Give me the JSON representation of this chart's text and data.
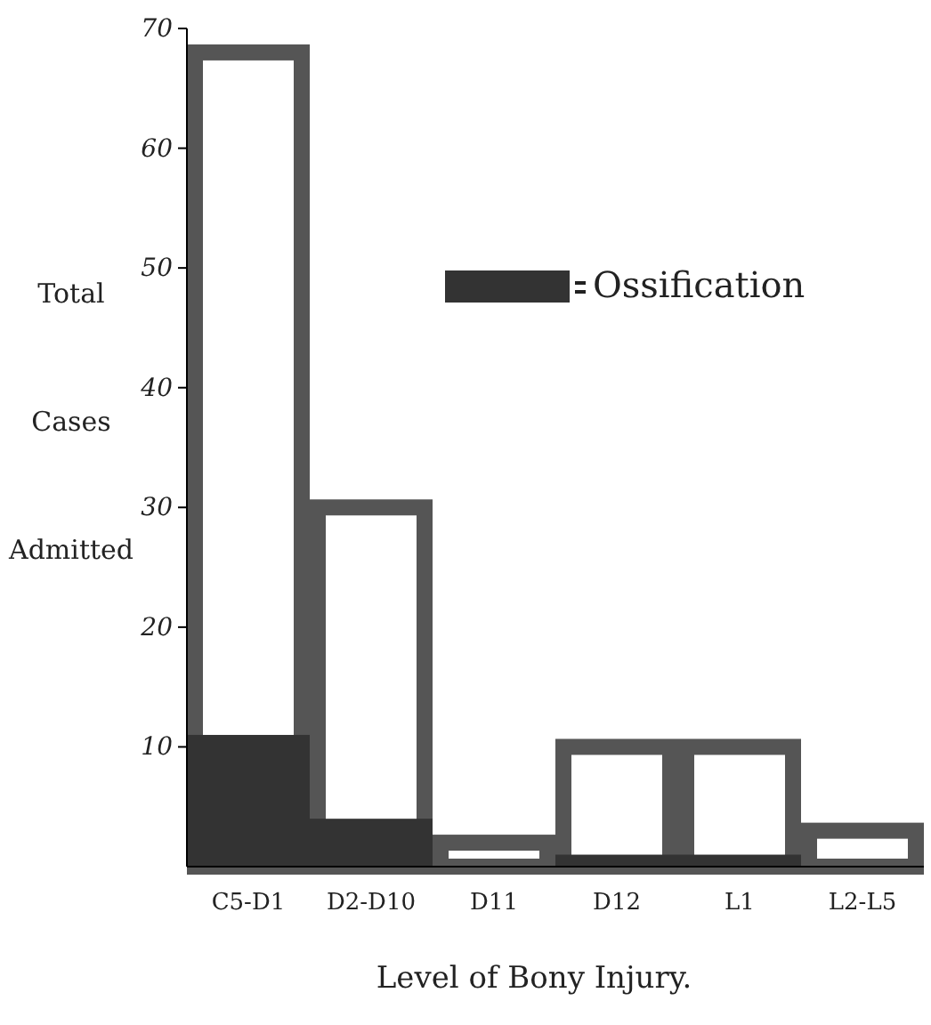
{
  "chart_data": {
    "type": "bar",
    "xlabel": "Level of Bony Injury.",
    "ylabel": "Total Cases Admitted",
    "categories": [
      "C5-D1",
      "D2-D10",
      "D11",
      "D12",
      "L1",
      "L2-L5"
    ],
    "series": [
      {
        "color": "#555555",
        "values": [
          68,
          30,
          2,
          10,
          10,
          3
        ]
      },
      {
        "name": "Ossification",
        "color": "#333333",
        "values": [
          11,
          4,
          0,
          1,
          1,
          0
        ]
      }
    ],
    "ylim": [
      0,
      70
    ],
    "yticks": [
      10,
      20,
      30,
      40,
      50,
      60,
      70
    ],
    "grid": false,
    "legend": "top right"
  }
}
